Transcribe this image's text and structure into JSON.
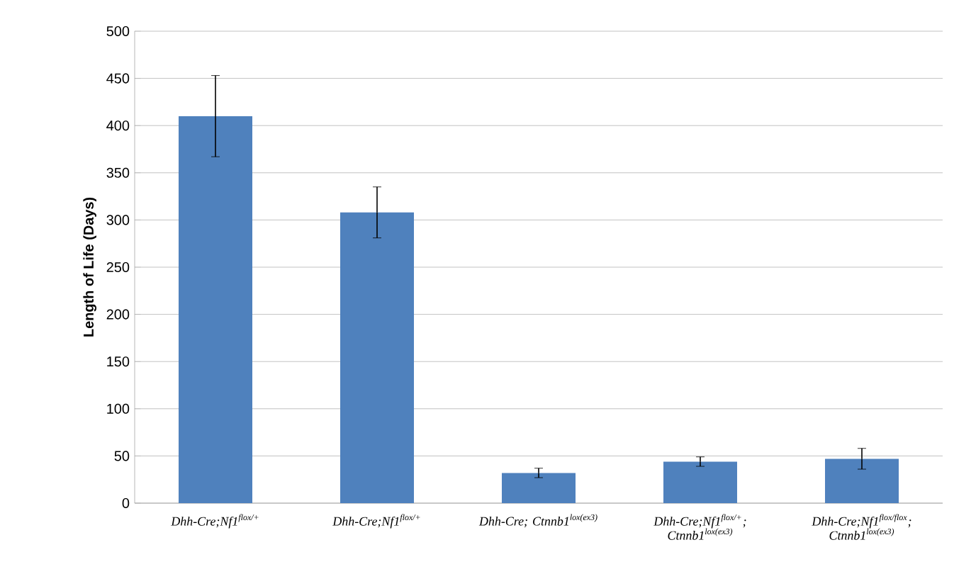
{
  "chart_data": {
    "type": "bar",
    "ylabel": "Length of Life (Days)",
    "categories": [
      "Dhh-Cre;Nf1$^{flox/+}$",
      "Dhh-Cre;Nf1$^{flox/+}$",
      "Dhh-Cre; Ctnnb1$^{lox(ex3)}$",
      "Dhh-Cre;Nf1$^{flox/+}$; Ctnnb1$^{lox(ex3)}$",
      "Dhh-Cre;Nf1$^{flox/flox}$; Ctnnb1$^{lox(ex3)}$"
    ],
    "values": [
      410,
      308,
      32,
      44,
      47
    ],
    "errors": [
      43,
      27,
      5,
      5,
      11
    ],
    "color": "#4f81bd",
    "ylim": [
      0,
      500
    ],
    "yticks": [
      0,
      50,
      100,
      150,
      200,
      250,
      300,
      350,
      400,
      450,
      500
    ],
    "grid": "y"
  }
}
